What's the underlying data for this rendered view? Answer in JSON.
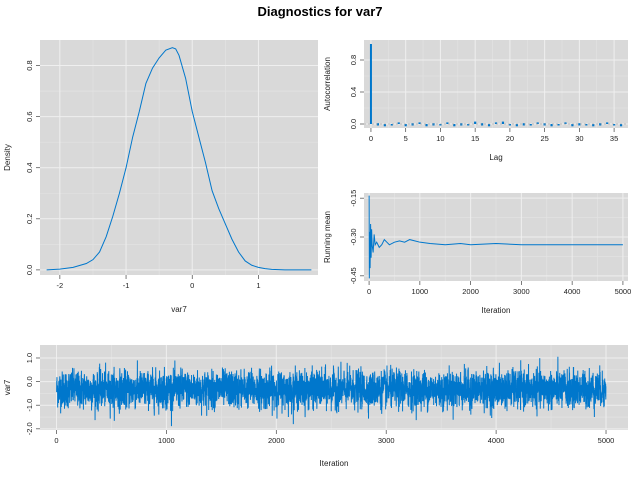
{
  "title": "Diagnostics for var7",
  "colors": {
    "series": "#0077cc",
    "panel": "#d9d9d9",
    "grid": "#efefef"
  },
  "chart_data": [
    {
      "type": "line",
      "panel": "density",
      "xlabel": "var7",
      "ylabel": "Density",
      "xlim": [
        -2.3,
        1.9
      ],
      "ylim": [
        -0.02,
        0.9
      ],
      "xticks": [
        -2,
        -1,
        0,
        1
      ],
      "yticks": [
        0.0,
        0.2,
        0.4,
        0.6,
        0.8
      ],
      "grid": true,
      "x": [
        -2.2,
        -2.0,
        -1.8,
        -1.6,
        -1.5,
        -1.4,
        -1.3,
        -1.2,
        -1.1,
        -1.0,
        -0.9,
        -0.8,
        -0.7,
        -0.6,
        -0.5,
        -0.4,
        -0.3,
        -0.25,
        -0.2,
        -0.1,
        0.0,
        0.1,
        0.2,
        0.3,
        0.4,
        0.5,
        0.6,
        0.7,
        0.8,
        0.9,
        1.0,
        1.1,
        1.2,
        1.4,
        1.6,
        1.8
      ],
      "y": [
        0.0,
        0.003,
        0.01,
        0.025,
        0.04,
        0.07,
        0.13,
        0.21,
        0.3,
        0.4,
        0.52,
        0.62,
        0.73,
        0.79,
        0.83,
        0.86,
        0.87,
        0.865,
        0.84,
        0.75,
        0.62,
        0.52,
        0.42,
        0.31,
        0.24,
        0.18,
        0.12,
        0.07,
        0.035,
        0.018,
        0.01,
        0.005,
        0.002,
        0.0,
        0.0,
        0.0
      ]
    },
    {
      "type": "bar",
      "panel": "autocorrelation",
      "xlabel": "Lag",
      "ylabel": "Autocorrelation",
      "xlim": [
        -1,
        37
      ],
      "ylim": [
        -0.05,
        1.05
      ],
      "xticks": [
        0,
        5,
        10,
        15,
        20,
        25,
        30,
        35
      ],
      "yticks": [
        0.0,
        0.4,
        0.8
      ],
      "grid": true,
      "categories": [
        0,
        1,
        2,
        3,
        4,
        5,
        6,
        7,
        8,
        9,
        10,
        11,
        12,
        13,
        14,
        15,
        16,
        17,
        18,
        19,
        20,
        21,
        22,
        23,
        24,
        25,
        26,
        27,
        28,
        29,
        30,
        31,
        32,
        33,
        34,
        35,
        36
      ],
      "values": [
        1.0,
        0.01,
        -0.01,
        0.0,
        0.02,
        -0.01,
        0.01,
        0.02,
        -0.01,
        0.01,
        0.0,
        0.02,
        -0.01,
        0.01,
        0.0,
        0.03,
        0.01,
        -0.01,
        0.02,
        0.03,
        0.0,
        -0.01,
        0.01,
        0.0,
        0.02,
        0.01,
        -0.01,
        0.0,
        0.02,
        -0.01,
        0.01,
        0.0,
        -0.01,
        0.01,
        0.02,
        0.0,
        -0.01
      ]
    },
    {
      "type": "line",
      "panel": "running-mean",
      "xlabel": "Iteration",
      "ylabel": "Running mean",
      "xlim": [
        -100,
        5100
      ],
      "ylim": [
        -0.47,
        -0.13
      ],
      "xticks": [
        0,
        1000,
        2000,
        3000,
        4000,
        5000
      ],
      "yticks": [
        -0.45,
        -0.3,
        -0.15
      ],
      "grid": true,
      "x": [
        1,
        5,
        10,
        20,
        30,
        40,
        50,
        60,
        80,
        100,
        120,
        150,
        200,
        250,
        300,
        350,
        400,
        500,
        600,
        700,
        800,
        900,
        1000,
        1200,
        1500,
        1800,
        2000,
        2500,
        3000,
        3500,
        4000,
        4500,
        5000
      ],
      "y": [
        -0.14,
        -0.46,
        -0.28,
        -0.42,
        -0.25,
        -0.38,
        -0.27,
        -0.33,
        -0.36,
        -0.29,
        -0.33,
        -0.32,
        -0.34,
        -0.33,
        -0.31,
        -0.32,
        -0.33,
        -0.32,
        -0.315,
        -0.32,
        -0.31,
        -0.315,
        -0.32,
        -0.325,
        -0.33,
        -0.325,
        -0.33,
        -0.325,
        -0.33,
        -0.33,
        -0.33,
        -0.33,
        -0.33
      ]
    },
    {
      "type": "line",
      "panel": "trace",
      "xlabel": "Iteration",
      "ylabel": "var7",
      "xlim": [
        -150,
        5200
      ],
      "ylim": [
        -2.05,
        1.55
      ],
      "xticks": [
        0,
        1000,
        2000,
        3000,
        4000,
        5000
      ],
      "yticks": [
        -2.0,
        -1.0,
        0.0,
        1.0
      ],
      "grid": true,
      "n_iterations": 5000,
      "mean": -0.33,
      "sd": 0.45
    }
  ]
}
